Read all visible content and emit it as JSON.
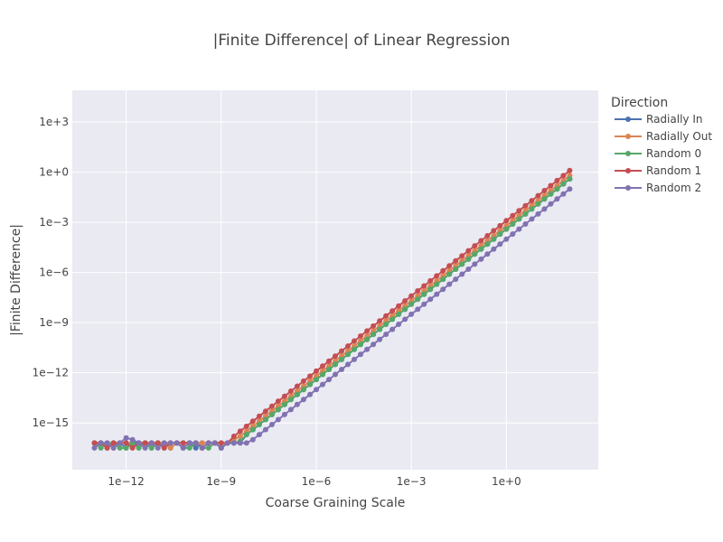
{
  "chart_data": {
    "type": "line",
    "title": "|Finite Difference| of Linear Regression",
    "xlabel": "Coarse Graining Scale",
    "ylabel": "|Finite Difference|",
    "x_scale": "log",
    "y_scale": "log",
    "xlim_log10": [
      -13.7,
      2.9
    ],
    "ylim_log10": [
      -17.8,
      4.9
    ],
    "x_ticks": [
      {
        "exp": -12,
        "label": "1e−12"
      },
      {
        "exp": -9,
        "label": "1e−9"
      },
      {
        "exp": -6,
        "label": "1e−6"
      },
      {
        "exp": -3,
        "label": "1e−3"
      },
      {
        "exp": 0,
        "label": "1e+0"
      }
    ],
    "y_ticks": [
      {
        "exp": -15,
        "label": "1e−15"
      },
      {
        "exp": -12,
        "label": "1e−12"
      },
      {
        "exp": -9,
        "label": "1e−9"
      },
      {
        "exp": -6,
        "label": "1e−6"
      },
      {
        "exp": -3,
        "label": "1e−3"
      },
      {
        "exp": 0,
        "label": "1e+0"
      },
      {
        "exp": 3,
        "label": "1e+3"
      }
    ],
    "grid": true,
    "legend": {
      "title": "Direction",
      "position": "right-top"
    },
    "series": [
      {
        "name": "Radially In",
        "color": "#4c72b0",
        "x_log10": [
          -13.0,
          -12.8,
          -12.6,
          -12.4,
          -12.2,
          -12.0,
          -11.8,
          -11.6,
          -11.4,
          -11.2,
          -11.0,
          -10.8,
          -10.6,
          -10.4,
          -10.2,
          -10.0,
          -9.8,
          -9.6,
          -9.4,
          -9.2,
          -9.0,
          -8.8,
          -8.6,
          -8.4,
          -8.2,
          -8.0,
          -7.8,
          -7.6,
          -7.4,
          -7.2,
          -7.0,
          -6.8,
          -6.6,
          -6.4,
          -6.2,
          -6.0,
          -5.8,
          -5.6,
          -5.4,
          -5.2,
          -5.0,
          -4.8,
          -4.6,
          -4.4,
          -4.2,
          -4.0,
          -3.8,
          -3.6,
          -3.4,
          -3.2,
          -3.0,
          -2.8,
          -2.6,
          -2.4,
          -2.2,
          -2.0,
          -1.8,
          -1.6,
          -1.4,
          -1.2,
          -1.0,
          -0.8,
          -0.6,
          -0.4,
          -0.2,
          0.0,
          0.2,
          0.4,
          0.6,
          0.8,
          1.0,
          1.2,
          1.4,
          1.6,
          1.8,
          2.0
        ],
        "y_log10": [
          -16.2,
          -16.2,
          -16.5,
          -16.2,
          -16.2,
          -16.5,
          -16.2,
          -16.2,
          -16.2,
          -16.5,
          -16.2,
          -16.2,
          -16.5,
          -16.2,
          -16.2,
          -16.2,
          -16.5,
          -16.2,
          -16.2,
          -16.2,
          -16.5,
          -16.2,
          -16.2,
          -16.2,
          -15.7,
          -15.4,
          -15.1,
          -14.8,
          -14.5,
          -14.2,
          -13.9,
          -13.6,
          -13.3,
          -13.0,
          -12.7,
          -12.4,
          -12.1,
          -11.8,
          -11.5,
          -11.2,
          -10.9,
          -10.6,
          -10.3,
          -10.0,
          -9.7,
          -9.4,
          -9.1,
          -8.8,
          -8.5,
          -8.2,
          -7.9,
          -7.6,
          -7.3,
          -7.0,
          -6.7,
          -6.4,
          -6.1,
          -5.8,
          -5.5,
          -5.2,
          -4.9,
          -4.6,
          -4.3,
          -4.0,
          -3.7,
          -3.4,
          -3.1,
          -2.8,
          -2.5,
          -2.2,
          -1.9,
          -1.6,
          -1.3,
          -1.0,
          -0.7,
          -0.4
        ]
      },
      {
        "name": "Radially Out",
        "color": "#dd8452",
        "x_log10": [
          -13.0,
          -12.8,
          -12.6,
          -12.4,
          -12.2,
          -12.0,
          -11.8,
          -11.6,
          -11.4,
          -11.2,
          -11.0,
          -10.8,
          -10.6,
          -10.4,
          -10.2,
          -10.0,
          -9.8,
          -9.6,
          -9.4,
          -9.2,
          -9.0,
          -8.8,
          -8.6,
          -8.4,
          -8.2,
          -8.0,
          -7.8,
          -7.6,
          -7.4,
          -7.2,
          -7.0,
          -6.8,
          -6.6,
          -6.4,
          -6.2,
          -6.0,
          -5.8,
          -5.6,
          -5.4,
          -5.2,
          -5.0,
          -4.8,
          -4.6,
          -4.4,
          -4.2,
          -4.0,
          -3.8,
          -3.6,
          -3.4,
          -3.2,
          -3.0,
          -2.8,
          -2.6,
          -2.4,
          -2.2,
          -2.0,
          -1.8,
          -1.6,
          -1.4,
          -1.2,
          -1.0,
          -0.8,
          -0.6,
          -0.4,
          -0.2,
          0.0,
          0.2,
          0.4,
          0.6,
          0.8,
          1.0,
          1.2,
          1.4,
          1.6,
          1.8,
          2.0
        ],
        "y_log10": [
          -16.2,
          -16.2,
          -16.2,
          -16.5,
          -16.2,
          -16.2,
          -16.2,
          -16.5,
          -16.2,
          -16.2,
          -16.2,
          -16.2,
          -16.5,
          -16.2,
          -16.2,
          -16.2,
          -16.2,
          -16.2,
          -16.2,
          -16.2,
          -16.2,
          -16.2,
          -16.0,
          -15.8,
          -15.5,
          -15.2,
          -14.9,
          -14.6,
          -14.3,
          -14.0,
          -13.7,
          -13.4,
          -13.1,
          -12.8,
          -12.5,
          -12.2,
          -11.9,
          -11.6,
          -11.3,
          -11.0,
          -10.7,
          -10.4,
          -10.1,
          -9.8,
          -9.5,
          -9.2,
          -8.9,
          -8.6,
          -8.3,
          -8.0,
          -7.7,
          -7.4,
          -7.1,
          -6.8,
          -6.5,
          -6.2,
          -5.9,
          -5.6,
          -5.3,
          -5.0,
          -4.7,
          -4.4,
          -4.1,
          -3.8,
          -3.5,
          -3.2,
          -2.9,
          -2.6,
          -2.3,
          -2.0,
          -1.7,
          -1.4,
          -1.1,
          -0.8,
          -0.5,
          -0.2
        ]
      },
      {
        "name": "Random 0",
        "color": "#55a868",
        "x_log10": [
          -13.0,
          -12.8,
          -12.6,
          -12.4,
          -12.2,
          -12.0,
          -11.8,
          -11.6,
          -11.4,
          -11.2,
          -11.0,
          -10.8,
          -10.6,
          -10.4,
          -10.2,
          -10.0,
          -9.8,
          -9.6,
          -9.4,
          -9.2,
          -9.0,
          -8.8,
          -8.6,
          -8.4,
          -8.2,
          -8.0,
          -7.8,
          -7.6,
          -7.4,
          -7.2,
          -7.0,
          -6.8,
          -6.6,
          -6.4,
          -6.2,
          -6.0,
          -5.8,
          -5.6,
          -5.4,
          -5.2,
          -5.0,
          -4.8,
          -4.6,
          -4.4,
          -4.2,
          -4.0,
          -3.8,
          -3.6,
          -3.4,
          -3.2,
          -3.0,
          -2.8,
          -2.6,
          -2.4,
          -2.2,
          -2.0,
          -1.8,
          -1.6,
          -1.4,
          -1.2,
          -1.0,
          -0.8,
          -0.6,
          -0.4,
          -0.2,
          0.0,
          0.2,
          0.4,
          0.6,
          0.8,
          1.0,
          1.2,
          1.4,
          1.6,
          1.8,
          2.0
        ],
        "y_log10": [
          -16.2,
          -16.5,
          -16.2,
          -16.2,
          -16.5,
          -16.5,
          -16.2,
          -16.5,
          -16.2,
          -16.5,
          -16.2,
          -16.5,
          -16.2,
          -16.2,
          -16.5,
          -16.5,
          -16.2,
          -16.5,
          -16.5,
          -16.2,
          -16.5,
          -16.2,
          -16.2,
          -16.1,
          -15.7,
          -15.4,
          -15.1,
          -14.8,
          -14.5,
          -14.2,
          -13.9,
          -13.6,
          -13.3,
          -13.0,
          -12.7,
          -12.4,
          -12.1,
          -11.8,
          -11.5,
          -11.2,
          -10.9,
          -10.6,
          -10.3,
          -10.0,
          -9.7,
          -9.4,
          -9.1,
          -8.8,
          -8.5,
          -8.2,
          -7.9,
          -7.6,
          -7.3,
          -7.0,
          -6.7,
          -6.4,
          -6.1,
          -5.8,
          -5.5,
          -5.2,
          -4.9,
          -4.6,
          -4.3,
          -4.0,
          -3.7,
          -3.4,
          -3.1,
          -2.8,
          -2.5,
          -2.2,
          -1.9,
          -1.6,
          -1.3,
          -1.0,
          -0.7,
          -0.4
        ]
      },
      {
        "name": "Random 1",
        "color": "#c44e52",
        "x_log10": [
          -13.0,
          -12.8,
          -12.6,
          -12.4,
          -12.2,
          -12.0,
          -11.8,
          -11.6,
          -11.4,
          -11.2,
          -11.0,
          -10.8,
          -10.6,
          -10.4,
          -10.2,
          -10.0,
          -9.8,
          -9.6,
          -9.4,
          -9.2,
          -9.0,
          -8.8,
          -8.6,
          -8.4,
          -8.2,
          -8.0,
          -7.8,
          -7.6,
          -7.4,
          -7.2,
          -7.0,
          -6.8,
          -6.6,
          -6.4,
          -6.2,
          -6.0,
          -5.8,
          -5.6,
          -5.4,
          -5.2,
          -5.0,
          -4.8,
          -4.6,
          -4.4,
          -4.2,
          -4.0,
          -3.8,
          -3.6,
          -3.4,
          -3.2,
          -3.0,
          -2.8,
          -2.6,
          -2.4,
          -2.2,
          -2.0,
          -1.8,
          -1.6,
          -1.4,
          -1.2,
          -1.0,
          -0.8,
          -0.6,
          -0.4,
          -0.2,
          0.0,
          0.2,
          0.4,
          0.6,
          0.8,
          1.0,
          1.2,
          1.4,
          1.6,
          1.8,
          2.0
        ],
        "y_log10": [
          -16.2,
          -16.2,
          -16.5,
          -16.2,
          -16.2,
          -16.2,
          -16.5,
          -16.2,
          -16.2,
          -16.2,
          -16.2,
          -16.5,
          -16.2,
          -16.2,
          -16.2,
          -16.2,
          -16.2,
          -16.5,
          -16.2,
          -16.2,
          -16.2,
          -16.2,
          -15.8,
          -15.5,
          -15.2,
          -14.9,
          -14.6,
          -14.3,
          -14.0,
          -13.7,
          -13.4,
          -13.1,
          -12.8,
          -12.5,
          -12.2,
          -11.9,
          -11.6,
          -11.3,
          -11.0,
          -10.7,
          -10.4,
          -10.1,
          -9.8,
          -9.5,
          -9.2,
          -8.9,
          -8.6,
          -8.3,
          -8.0,
          -7.7,
          -7.4,
          -7.1,
          -6.8,
          -6.5,
          -6.2,
          -5.9,
          -5.6,
          -5.3,
          -5.0,
          -4.7,
          -4.4,
          -4.1,
          -3.8,
          -3.5,
          -3.2,
          -2.9,
          -2.6,
          -2.3,
          -2.0,
          -1.7,
          -1.4,
          -1.1,
          -0.8,
          -0.5,
          -0.2,
          0.1
        ]
      },
      {
        "name": "Random 2",
        "color": "#8172b2",
        "x_log10": [
          -13.0,
          -12.8,
          -12.6,
          -12.4,
          -12.2,
          -12.0,
          -11.8,
          -11.6,
          -11.4,
          -11.2,
          -11.0,
          -10.8,
          -10.6,
          -10.4,
          -10.2,
          -10.0,
          -9.8,
          -9.6,
          -9.4,
          -9.2,
          -9.0,
          -8.8,
          -8.6,
          -8.4,
          -8.2,
          -8.0,
          -7.8,
          -7.6,
          -7.4,
          -7.2,
          -7.0,
          -6.8,
          -6.6,
          -6.4,
          -6.2,
          -6.0,
          -5.8,
          -5.6,
          -5.4,
          -5.2,
          -5.0,
          -4.8,
          -4.6,
          -4.4,
          -4.2,
          -4.0,
          -3.8,
          -3.6,
          -3.4,
          -3.2,
          -3.0,
          -2.8,
          -2.6,
          -2.4,
          -2.2,
          -2.0,
          -1.8,
          -1.6,
          -1.4,
          -1.2,
          -1.0,
          -0.8,
          -0.6,
          -0.4,
          -0.2,
          0.0,
          0.2,
          0.4,
          0.6,
          0.8,
          1.0,
          1.2,
          1.4,
          1.6,
          1.8,
          2.0
        ],
        "y_log10": [
          -16.5,
          -16.2,
          -16.2,
          -16.5,
          -16.2,
          -15.9,
          -16.0,
          -16.2,
          -16.5,
          -16.2,
          -16.5,
          -16.2,
          -16.2,
          -16.2,
          -16.5,
          -16.2,
          -16.2,
          -16.5,
          -16.2,
          -16.2,
          -16.5,
          -16.2,
          -16.2,
          -16.2,
          -16.2,
          -16.0,
          -15.7,
          -15.4,
          -15.1,
          -14.8,
          -14.5,
          -14.2,
          -13.9,
          -13.6,
          -13.3,
          -13.0,
          -12.7,
          -12.4,
          -12.1,
          -11.8,
          -11.5,
          -11.2,
          -10.9,
          -10.6,
          -10.3,
          -10.0,
          -9.7,
          -9.4,
          -9.1,
          -8.8,
          -8.5,
          -8.2,
          -7.9,
          -7.6,
          -7.3,
          -7.0,
          -6.7,
          -6.4,
          -6.1,
          -5.8,
          -5.5,
          -5.2,
          -4.9,
          -4.6,
          -4.3,
          -4.0,
          -3.7,
          -3.4,
          -3.1,
          -2.8,
          -2.5,
          -2.2,
          -1.9,
          -1.6,
          -1.3,
          -1.0
        ]
      }
    ]
  }
}
